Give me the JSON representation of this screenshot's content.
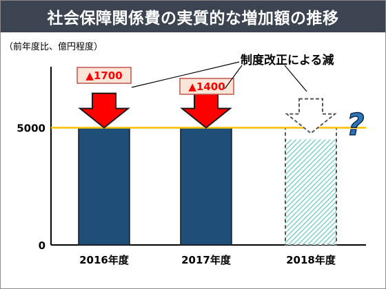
{
  "title": "社会保障関係費の実質的な増加額の推移",
  "unit_label": "（前年度比、億円程度）",
  "annotation": "制度改正による減",
  "colors": {
    "header_bg": "#3b4450",
    "bar": "#1f4e79",
    "target_line": "#ffc000",
    "arrow": "#ff0000",
    "reduction_label_bg": "#fbe5d6",
    "reduction_label_border": "#c0504d",
    "reduction_text": "#ff0000",
    "question_mark": "#2e75b6",
    "hatch": "#7fd1c7"
  },
  "icons": {
    "arrow": "down-arrow-icon",
    "question": "question-mark-icon"
  },
  "chart_data": {
    "type": "bar",
    "categories": [
      "2016年度",
      "2017年度",
      "2018年度"
    ],
    "values": [
      5000,
      5000,
      4500
    ],
    "projected": [
      false,
      false,
      true
    ],
    "reductions": [
      "▲1700",
      "▲1400",
      null
    ],
    "target_line": 5000,
    "yticks": [
      0,
      5000
    ],
    "ylim": [
      0,
      7600
    ],
    "grid": false,
    "legend": "none"
  }
}
